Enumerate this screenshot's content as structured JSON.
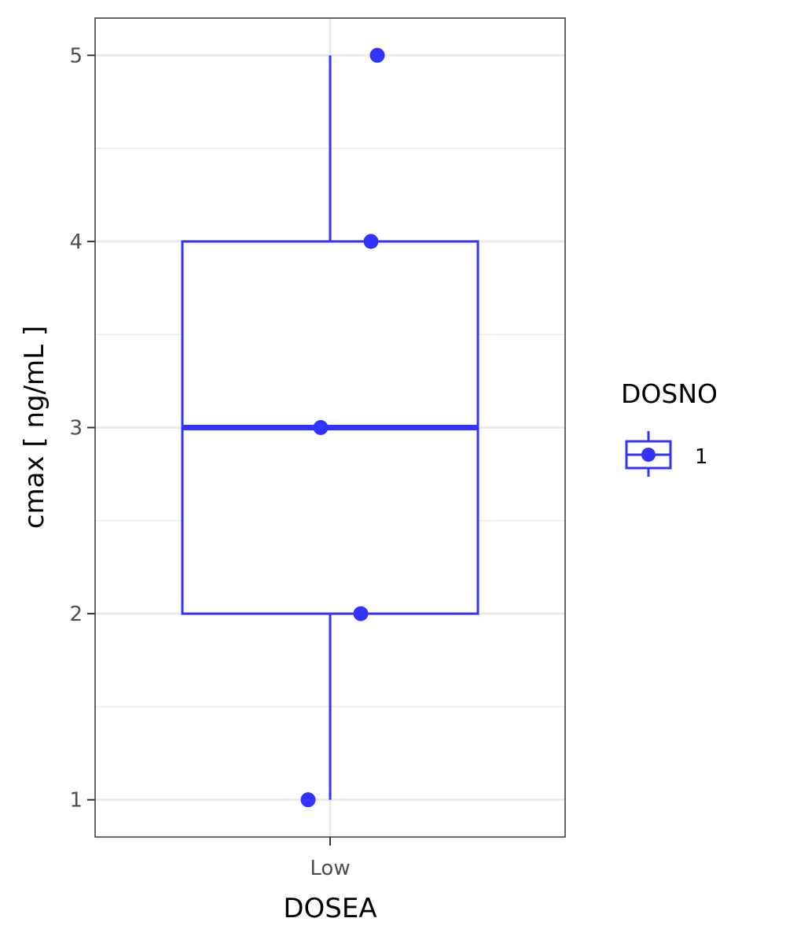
{
  "chart_data": {
    "type": "box",
    "xlabel": "DOSEA",
    "ylabel": "cmax  [ ng/mL ]",
    "categories": [
      "Low"
    ],
    "ylim": [
      0.8,
      5.2
    ],
    "y_ticks": [
      1,
      2,
      3,
      4,
      5
    ],
    "y_tick_labels": [
      "1",
      "2",
      "3",
      "4",
      "5"
    ],
    "grid": true,
    "legend": {
      "title": "DOSNO",
      "position": "right",
      "entries": [
        "1"
      ]
    },
    "series": [
      {
        "name": "1",
        "color": "#3333ff",
        "boxes": [
          {
            "category": "Low",
            "min": 1,
            "q1": 2,
            "median": 3,
            "q3": 4,
            "max": 5
          }
        ],
        "points": [
          {
            "category": "Low",
            "y": 5
          },
          {
            "category": "Low",
            "y": 4
          },
          {
            "category": "Low",
            "y": 3
          },
          {
            "category": "Low",
            "y": 2
          },
          {
            "category": "Low",
            "y": 1
          }
        ]
      }
    ]
  }
}
